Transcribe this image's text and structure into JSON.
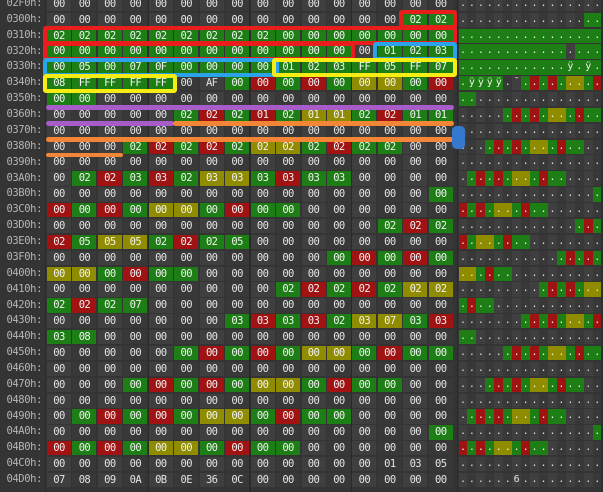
{
  "app": {
    "name": "hex-editor-view",
    "bytes_per_row": 16
  },
  "palette": {
    "highlight_green": "#1c7e14",
    "highlight_red": "#a11212",
    "highlight_olive": "#8f8c00",
    "annotation_red": "#ea1d1d",
    "annotation_blue": "#2aa3e8",
    "annotation_yellow": "#f7ec13",
    "annotation_purple": "#a85cc9",
    "annotation_orange": "#f28636",
    "selection_block_blue": "#3579cf"
  },
  "rows": [
    {
      "offset": "02F0h:",
      "hex": "00 00 00 00 00 00 00 00 00 00 00 00 00 00 00 00",
      "hl": "................",
      "ascii": "................"
    },
    {
      "offset": "0300h:",
      "hex": "00 00 00 00 00 00 00 00 00 00 00 00 00 00 02 02",
      "hl": "..............gg",
      "ascii": "................"
    },
    {
      "offset": "0310h:",
      "hex": "02 02 02 02 02 02 02 02 02 00 00 00 00 00 00 00",
      "hl": "gggggggggggggggg",
      "ascii": "................"
    },
    {
      "offset": "0320h:",
      "hex": "00 00 00 00 00 00 00 00 00 00 00 00 00 01 02 03",
      "hl": "gggggggggggg.ggg",
      "ascii": "................"
    },
    {
      "offset": "0330h:",
      "hex": "00 05 00 07 0F 00 00 00 00 01 02 03 FF 05 FF 07",
      "hl": "gggggggggggggggg",
      "ascii": "............ÿ.ÿ."
    },
    {
      "offset": "0340h:",
      "hex": "08 FF FF FF FF 00 AF 00 00 00 00 00 00 00 00 00",
      "hl": "ggggg..grgrgoogr",
      "ascii": ".ÿÿÿÿ.¯........."
    },
    {
      "offset": "0350h:",
      "hex": "00 00 00 00 00 00 00 00 00 00 00 00 00 00 00 00",
      "hl": "gg..............",
      "ascii": "................"
    },
    {
      "offset": "0360h:",
      "hex": "00 00 00 00 00 02 02 02 01 02 01 01 02 02 01 01",
      "hl": ".....grgrgoogrgg",
      "ascii": "................"
    },
    {
      "offset": "0370h:",
      "hex": "00 00 00 00 00 00 00 00 00 00 00 00 00 00 00 00",
      "hl": "................",
      "ascii": "................"
    },
    {
      "offset": "0380h:",
      "hex": "00 00 00 02 02 02 02 02 02 02 02 02 02 02 00 00",
      "hl": "...grgrgoogrgg..",
      "ascii": "................"
    },
    {
      "offset": "0390h:",
      "hex": "00 00 00 00 00 00 00 00 00 00 00 00 00 00 00 00",
      "hl": "................",
      "ascii": "................"
    },
    {
      "offset": "03A0h:",
      "hex": "00 02 02 03 03 02 03 03 03 03 03 03 00 00 00 00",
      "hl": ".grgrgoogrgg....",
      "ascii": "................"
    },
    {
      "offset": "03B0h:",
      "hex": "00 00 00 00 00 00 00 00 00 00 00 00 00 00 00 00",
      "hl": "...............g",
      "ascii": "................"
    },
    {
      "offset": "03C0h:",
      "hex": "00 00 00 00 00 00 00 00 00 00 00 00 00 00 00 00",
      "hl": "rgrgoogrgg......",
      "ascii": "................"
    },
    {
      "offset": "03D0h:",
      "hex": "00 00 00 00 00 00 00 00 00 00 00 00 00 02 02 02",
      "hl": ".............grg",
      "ascii": "................"
    },
    {
      "offset": "03E0h:",
      "hex": "02 05 05 05 02 02 02 05 00 00 00 00 00 00 00 00",
      "hl": "rgoogrgg........",
      "ascii": "................"
    },
    {
      "offset": "03F0h:",
      "hex": "00 00 00 00 00 00 00 00 00 00 00 00 00 00 00 00",
      "hl": "...........grgrg",
      "ascii": "................"
    },
    {
      "offset": "0400h:",
      "hex": "00 00 00 00 00 00 00 00 00 00 00 00 00 00 00 00",
      "hl": "oogrgg..........",
      "ascii": "................"
    },
    {
      "offset": "0410h:",
      "hex": "00 00 00 00 00 00 00 00 00 02 02 02 02 02 02 02",
      "hl": ".........grgrgoo",
      "ascii": "................"
    },
    {
      "offset": "0420h:",
      "hex": "02 02 02 07 00 00 00 00 00 00 00 00 00 00 00 00",
      "hl": "grgg............",
      "ascii": "................"
    },
    {
      "offset": "0430h:",
      "hex": "00 00 00 00 00 00 00 03 03 03 03 02 03 07 03 03",
      "hl": ".......grgrgoogr",
      "ascii": "................"
    },
    {
      "offset": "0440h:",
      "hex": "03 08 00 00 00 00 00 00 00 00 00 00 00 00 00 00",
      "hl": "gg..............",
      "ascii": "................"
    },
    {
      "offset": "0450h:",
      "hex": "00 00 00 00 00 00 00 00 00 00 00 00 00 00 00 00",
      "hl": ".....grgrgoogrgg",
      "ascii": "................"
    },
    {
      "offset": "0460h:",
      "hex": "00 00 00 00 00 00 00 00 00 00 00 00 00 00 00 00",
      "hl": "................",
      "ascii": "................"
    },
    {
      "offset": "0470h:",
      "hex": "00 00 00 00 00 00 00 00 00 00 00 00 00 00 00 00",
      "hl": "...grgrgoogrgg..",
      "ascii": "................"
    },
    {
      "offset": "0480h:",
      "hex": "00 00 00 00 00 00 00 00 00 00 00 00 00 00 00 00",
      "hl": "................",
      "ascii": "................"
    },
    {
      "offset": "0490h:",
      "hex": "00 00 00 00 00 00 00 00 00 00 00 00 00 00 00 00",
      "hl": ".grgrgoogrgg....",
      "ascii": "................"
    },
    {
      "offset": "04A0h:",
      "hex": "00 00 00 00 00 00 00 00 00 00 00 00 00 00 00 00",
      "hl": "...............g",
      "ascii": "................"
    },
    {
      "offset": "04B0h:",
      "hex": "00 00 00 00 00 00 00 00 00 00 00 00 00 00 00 00",
      "hl": "rgrgoogrgg......",
      "ascii": "................"
    },
    {
      "offset": "04C0h:",
      "hex": "00 00 00 00 00 00 00 00 00 00 00 00 00 01 03 05",
      "hl": "................",
      "ascii": "................"
    },
    {
      "offset": "04D0h:",
      "hex": "07 08 09 0A 0B 0E 36 0C 00 00 00 00 00 00 00 00",
      "hl": "................",
      "ascii": "......6........."
    }
  ],
  "annotations": {
    "boxes": [
      {
        "color": "annotation_red",
        "row": 1,
        "c1": 14,
        "c2": 15
      },
      {
        "color": "annotation_red",
        "row": 2,
        "c1": 0,
        "c2": 15
      },
      {
        "color": "annotation_red",
        "row": 3,
        "c1": 0,
        "c2": 11
      },
      {
        "color": "annotation_blue",
        "row": 3,
        "c1": 13,
        "c2": 15
      },
      {
        "color": "annotation_blue",
        "row": 4,
        "c1": 0,
        "c2": 8
      },
      {
        "color": "annotation_yellow",
        "row": 4,
        "c1": 9,
        "c2": 15
      },
      {
        "color": "annotation_yellow",
        "row": 5,
        "c1": 0,
        "c2": 4
      }
    ],
    "underlines": [
      {
        "color": "annotation_purple",
        "row": 6,
        "c1": 0,
        "c2": 15
      },
      {
        "color": "annotation_purple",
        "row": 7,
        "c1": 0,
        "c2": 4
      },
      {
        "color": "annotation_orange",
        "row": 7,
        "c1": 5,
        "c2": 15
      },
      {
        "color": "annotation_orange",
        "row": 8,
        "c1": 0,
        "c2": 15
      },
      {
        "color": "annotation_orange",
        "row": 9,
        "c1": 0,
        "c2": 2
      }
    ],
    "selection_block": {
      "color": "selection_block_blue",
      "row": 8
    }
  }
}
